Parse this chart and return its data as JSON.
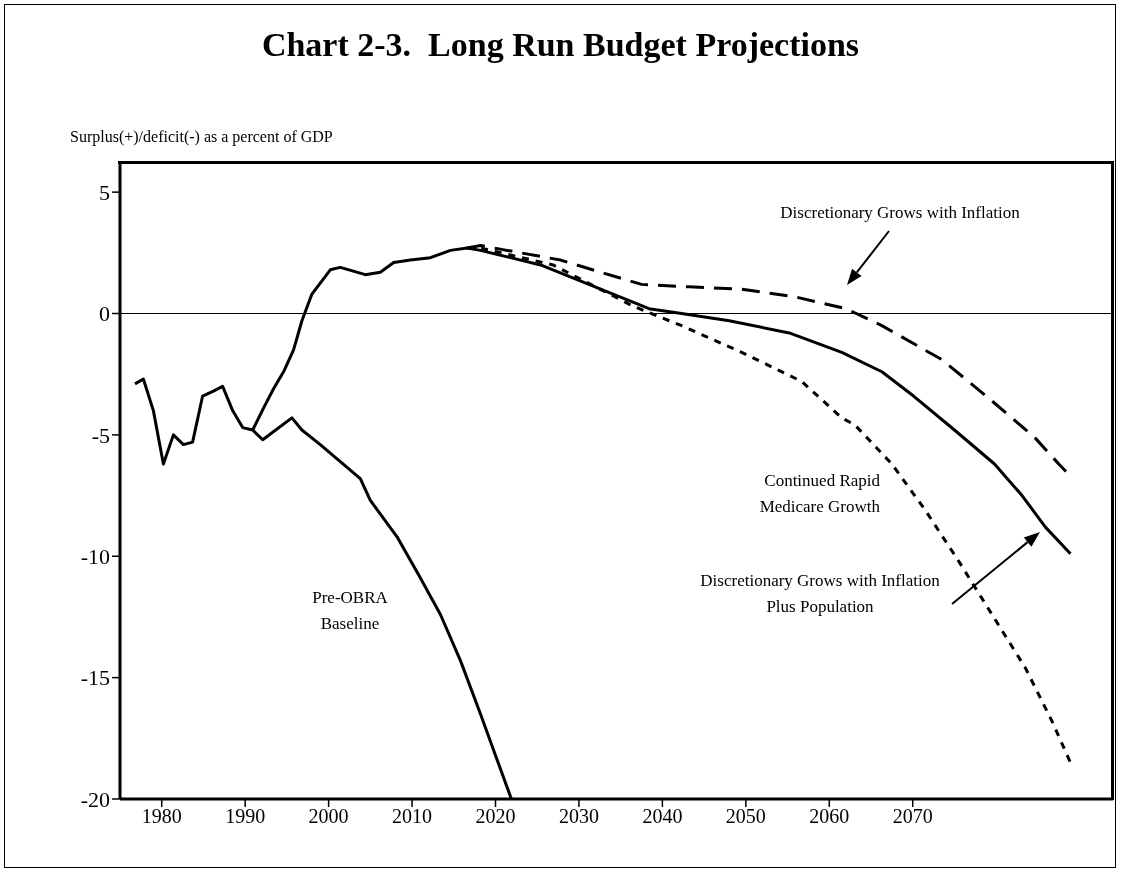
{
  "chart_data": {
    "type": "line",
    "title": "Chart 2-3.  Long Run Budget Projections",
    "ylabel": "Surplus(+)/deficit(-) as a percent of GDP",
    "xlim": [
      1975,
      2094
    ],
    "xticks": [
      1980,
      1990,
      2000,
      2010,
      2020,
      2030,
      2040,
      2050,
      2060,
      2070
    ],
    "ylim": [
      -20,
      6.2
    ],
    "yticks": [
      5,
      0,
      -5,
      -10,
      -15,
      -20
    ],
    "grid": false,
    "legend": false,
    "marker": "none",
    "ref_lines": [
      {
        "axis": "y",
        "value": 0,
        "color": "#000000"
      }
    ],
    "series": [
      {
        "name": "Pre-OBRA Baseline",
        "color": "#000000",
        "line_style": "solid",
        "x": [
          1976.8,
          1977.8,
          1979.0,
          1980.2,
          1981.4,
          1982.6,
          1983.7,
          1984.9,
          1986.2,
          1987.3,
          1988.5,
          1989.7,
          1990.9,
          1992.1,
          1995.6,
          1996.8,
          1999.0,
          2003.8,
          2005.0,
          2008.2,
          2011.0,
          2013.4,
          2015.8,
          2018.2,
          2021.9
        ],
        "values": [
          -2.9,
          -2.7,
          -4.0,
          -6.2,
          -5.0,
          -5.4,
          -5.3,
          -3.4,
          -3.2,
          -3.0,
          -4.0,
          -4.7,
          -4.8,
          -5.2,
          -4.3,
          -4.8,
          -5.4,
          -6.8,
          -7.7,
          -9.2,
          -10.9,
          -12.4,
          -14.3,
          -16.5,
          -20
        ]
      },
      {
        "name": "Discretionary Grows with Inflation Plus Population",
        "color": "#000000",
        "line_style": "solid",
        "x": [
          1990.9,
          1992.2,
          1993.4,
          1994.6,
          1995.8,
          1996.8,
          1998.0,
          2000.2,
          2001.4,
          2004.4,
          2006.2,
          2007.8,
          2009.8,
          2012.2,
          2014.6,
          2016.6,
          2018.2,
          2025.4,
          2032.6,
          2038.4,
          2042.3,
          2048.0,
          2055.2,
          2061.5,
          2066.3,
          2070.1,
          2075.0,
          2079.8,
          2083.1,
          2085.9,
          2088.9
        ],
        "values": [
          -4.8,
          -3.9,
          -3.1,
          -2.4,
          -1.5,
          -0.3,
          0.8,
          1.8,
          1.9,
          1.6,
          1.7,
          2.1,
          2.2,
          2.3,
          2.6,
          2.7,
          2.6,
          2.0,
          1.0,
          0.2,
          0,
          -0.3,
          -0.8,
          -1.6,
          -2.4,
          -3.4,
          -4.8,
          -6.2,
          -7.5,
          -8.8,
          -9.9
        ]
      },
      {
        "name": "Continued Rapid Medicare Growth",
        "color": "#000000",
        "line_style": "dotted",
        "x": [
          2016.6,
          2018.2,
          2026.9,
          2036.5,
          2042.3,
          2049.5,
          2056.7,
          2061.5,
          2063.1,
          2067.5,
          2071.5,
          2075.5,
          2079.5,
          2083.5,
          2086.7,
          2088.9
        ],
        "values": [
          2.7,
          2.7,
          2.0,
          0.3,
          -0.5,
          -1.6,
          -2.8,
          -4.3,
          -4.6,
          -6.2,
          -8.1,
          -10.2,
          -12.4,
          -14.6,
          -16.8,
          -18.5
        ]
      },
      {
        "name": "Discretionary Grows with Inflation",
        "color": "#000000",
        "line_style": "dashed",
        "x": [
          2016.6,
          2018.2,
          2027.8,
          2032.6,
          2037.5,
          2043.2,
          2049.5,
          2055.7,
          2062.0,
          2066.3,
          2073.5,
          2078.8,
          2084.6,
          2087.5,
          2088.9
        ],
        "values": [
          2.7,
          2.8,
          2.2,
          1.7,
          1.2,
          1.1,
          1.0,
          0.7,
          0.2,
          -0.5,
          -1.9,
          -3.4,
          -5.1,
          -6.2,
          -6.7
        ]
      }
    ]
  }
}
